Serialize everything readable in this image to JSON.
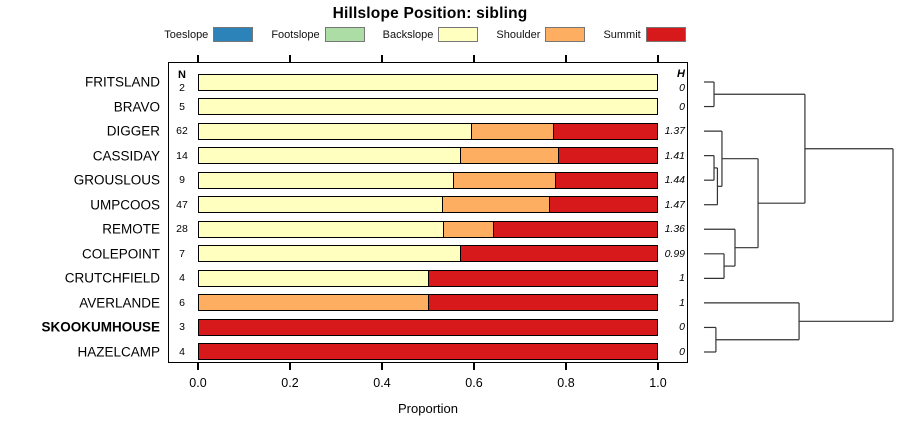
{
  "title": "Hillslope Position: sibling",
  "axis": {
    "xlabel": "Proportion",
    "tick_labels": [
      "0.0",
      "0.2",
      "0.4",
      "0.6",
      "0.8",
      "1.0"
    ]
  },
  "columns": {
    "n_header": "N",
    "h_header": "H"
  },
  "legend": [
    {
      "label": "Toeslope",
      "color": "#2B83BA"
    },
    {
      "label": "Footslope",
      "color": "#ABDDA4"
    },
    {
      "label": "Backslope",
      "color": "#FFFFBF"
    },
    {
      "label": "Shoulder",
      "color": "#FDAE61"
    },
    {
      "label": "Summit",
      "color": "#D7191C"
    }
  ],
  "chart_data": {
    "type": "bar",
    "subtype": "horizontal-stacked-proportion-with-dendrogram",
    "title": "Hillslope Position: sibling",
    "xlabel": "Proportion",
    "xlim": [
      0,
      1
    ],
    "x_ticks": [
      0.0,
      0.2,
      0.4,
      0.6,
      0.8,
      1.0
    ],
    "grid": false,
    "legend_position": "top",
    "categories": [
      "Toeslope",
      "Footslope",
      "Backslope",
      "Shoulder",
      "Summit"
    ],
    "colors": {
      "Toeslope": "#2B83BA",
      "Footslope": "#ABDDA4",
      "Backslope": "#FFFFBF",
      "Shoulder": "#FDAE61",
      "Summit": "#D7191C"
    },
    "rows": [
      {
        "name": "FRITSLAND",
        "n": 2,
        "h": "0",
        "bold": false,
        "segments": [
          {
            "category": "Backslope",
            "value": 1.0
          }
        ]
      },
      {
        "name": "BRAVO",
        "n": 5,
        "h": "0",
        "bold": false,
        "segments": [
          {
            "category": "Backslope",
            "value": 1.0
          }
        ]
      },
      {
        "name": "DIGGER",
        "n": 62,
        "h": "1.37",
        "bold": false,
        "segments": [
          {
            "category": "Backslope",
            "value": 0.597
          },
          {
            "category": "Shoulder",
            "value": 0.177
          },
          {
            "category": "Summit",
            "value": 0.226
          }
        ]
      },
      {
        "name": "CASSIDAY",
        "n": 14,
        "h": "1.41",
        "bold": false,
        "segments": [
          {
            "category": "Backslope",
            "value": 0.572
          },
          {
            "category": "Shoulder",
            "value": 0.214
          },
          {
            "category": "Summit",
            "value": 0.214
          }
        ]
      },
      {
        "name": "GROUSLOUS",
        "n": 9,
        "h": "1.44",
        "bold": false,
        "segments": [
          {
            "category": "Backslope",
            "value": 0.556
          },
          {
            "category": "Shoulder",
            "value": 0.222
          },
          {
            "category": "Summit",
            "value": 0.222
          }
        ]
      },
      {
        "name": "UMPCOOS",
        "n": 47,
        "h": "1.47",
        "bold": false,
        "segments": [
          {
            "category": "Backslope",
            "value": 0.532
          },
          {
            "category": "Shoulder",
            "value": 0.234
          },
          {
            "category": "Summit",
            "value": 0.234
          }
        ]
      },
      {
        "name": "REMOTE",
        "n": 28,
        "h": "1.36",
        "bold": false,
        "segments": [
          {
            "category": "Backslope",
            "value": 0.536
          },
          {
            "category": "Shoulder",
            "value": 0.107
          },
          {
            "category": "Summit",
            "value": 0.357
          }
        ]
      },
      {
        "name": "COLEPOINT",
        "n": 7,
        "h": "0.99",
        "bold": false,
        "segments": [
          {
            "category": "Backslope",
            "value": 0.571
          },
          {
            "category": "Summit",
            "value": 0.429
          }
        ]
      },
      {
        "name": "CRUTCHFIELD",
        "n": 4,
        "h": "1",
        "bold": false,
        "segments": [
          {
            "category": "Backslope",
            "value": 0.5
          },
          {
            "category": "Summit",
            "value": 0.5
          }
        ]
      },
      {
        "name": "AVERLANDE",
        "n": 6,
        "h": "1",
        "bold": false,
        "segments": [
          {
            "category": "Shoulder",
            "value": 0.5
          },
          {
            "category": "Summit",
            "value": 0.5
          }
        ]
      },
      {
        "name": "SKOOKUMHOUSE",
        "n": 3,
        "h": "0",
        "bold": true,
        "segments": [
          {
            "category": "Summit",
            "value": 1.0
          }
        ]
      },
      {
        "name": "HAZELCAMP",
        "n": 4,
        "h": "0",
        "bold": false,
        "segments": [
          {
            "category": "Summit",
            "value": 1.0
          }
        ]
      }
    ],
    "dendrogram": {
      "height": 1.0,
      "children": [
        {
          "height": 0.534,
          "children": [
            {
              "height": 0.053,
              "children": [
                "FRITSLAND",
                "BRAVO"
              ]
            },
            {
              "height": 0.286,
              "children": [
                {
                  "height": 0.095,
                  "children": [
                    "DIGGER",
                    {
                      "height": 0.071,
                      "children": [
                        {
                          "height": 0.053,
                          "children": [
                            "CASSIDAY",
                            "GROUSLOUS"
                          ]
                        },
                        "UMPCOOS"
                      ]
                    }
                  ]
                },
                {
                  "height": 0.164,
                  "children": [
                    "REMOTE",
                    {
                      "height": 0.106,
                      "children": [
                        "COLEPOINT",
                        "CRUTCHFIELD"
                      ]
                    }
                  ]
                }
              ]
            }
          ]
        },
        {
          "height": 0.503,
          "children": [
            "AVERLANDE",
            {
              "height": 0.063,
              "children": [
                "SKOOKUMHOUSE",
                "HAZELCAMP"
              ]
            }
          ]
        }
      ]
    }
  }
}
